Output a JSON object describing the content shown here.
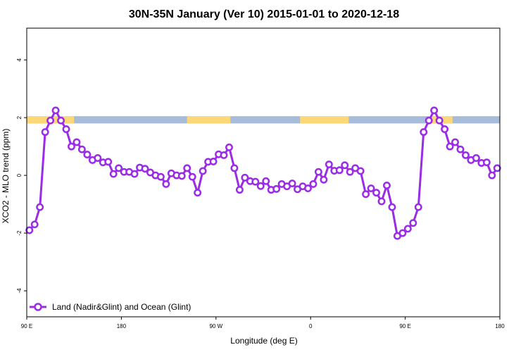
{
  "chart_data": {
    "type": "line",
    "title": "30N-35N January (Ver 10)   2015-01-01 to 2020-12-18",
    "xlabel": "Longitude (deg E)",
    "ylabel": "XCO2 - MLO trend (ppm)",
    "xlim": [
      0,
      360
    ],
    "ylim": [
      -4.9,
      5.1
    ],
    "x_ticks": [
      {
        "value": 0,
        "label": "90 E"
      },
      {
        "value": 72,
        "label": "180"
      },
      {
        "value": 144,
        "label": "90 W"
      },
      {
        "value": 216,
        "label": "0"
      },
      {
        "value": 288,
        "label": "90 E"
      },
      {
        "value": 360,
        "label": "180"
      }
    ],
    "y_ticks": [
      {
        "value": -4,
        "label": "-4"
      },
      {
        "value": -2,
        "label": "-2"
      },
      {
        "value": 0,
        "label": "0"
      },
      {
        "value": 2,
        "label": "2"
      },
      {
        "value": 4,
        "label": "4"
      }
    ],
    "grid": false,
    "legend_position": "bottom-left",
    "surface_band": {
      "y_range": [
        1.8,
        2.05
      ],
      "land_color": "#fdd878",
      "ocean_color": "#a7bbda",
      "land_segments": [
        [
          0,
          36
        ],
        [
          122,
          155
        ],
        [
          208,
          245
        ],
        [
          306,
          324
        ]
      ]
    },
    "series": [
      {
        "name": "Land (Nadir&Glint) and Ocean (Glint)",
        "color": "#9a2ce6",
        "x": [
          2,
          6,
          10,
          14,
          18,
          22,
          26,
          30,
          34,
          38,
          42,
          46,
          50,
          54,
          58,
          62,
          66,
          70,
          74,
          78,
          82,
          86,
          90,
          94,
          98,
          102,
          106,
          110,
          114,
          118,
          122,
          126,
          130,
          134,
          138,
          142,
          146,
          150,
          154,
          158,
          162,
          166,
          170,
          174,
          178,
          182,
          186,
          190,
          194,
          198,
          202,
          206,
          210,
          214,
          218,
          222,
          226,
          230,
          234,
          238,
          242,
          246,
          250,
          254,
          258,
          262,
          266,
          270,
          274,
          278,
          282,
          286,
          290,
          294,
          298,
          302,
          306,
          310,
          314,
          318,
          322,
          326,
          330,
          334,
          338,
          342,
          346,
          350,
          354,
          358
        ],
        "y": [
          -1.9,
          -1.7,
          -1.1,
          1.5,
          1.9,
          2.25,
          1.9,
          1.6,
          1.0,
          1.15,
          0.9,
          0.72,
          0.53,
          0.6,
          0.45,
          0.47,
          0.05,
          0.25,
          0.12,
          0.12,
          0.05,
          0.27,
          0.23,
          0.1,
          0.0,
          -0.05,
          -0.3,
          0.07,
          0.0,
          -0.02,
          0.25,
          -0.05,
          -0.6,
          0.15,
          0.47,
          0.48,
          0.73,
          0.7,
          0.97,
          0.25,
          -0.5,
          -0.08,
          -0.2,
          -0.22,
          -0.37,
          -0.2,
          -0.5,
          -0.47,
          -0.3,
          -0.38,
          -0.28,
          -0.48,
          -0.38,
          -0.45,
          -0.3,
          0.12,
          -0.15,
          0.38,
          0.16,
          0.18,
          0.35,
          0.12,
          0.25,
          0.15,
          -0.65,
          -0.45,
          -0.6,
          -0.9,
          -0.35,
          -1.1,
          -2.1,
          -2.0,
          -1.85,
          -1.65,
          -1.1,
          1.5,
          1.9,
          2.25,
          1.9,
          1.6,
          1.0,
          1.15,
          0.9,
          0.7,
          0.53,
          0.6,
          0.43,
          0.45,
          0.0,
          0.25
        ]
      }
    ]
  }
}
